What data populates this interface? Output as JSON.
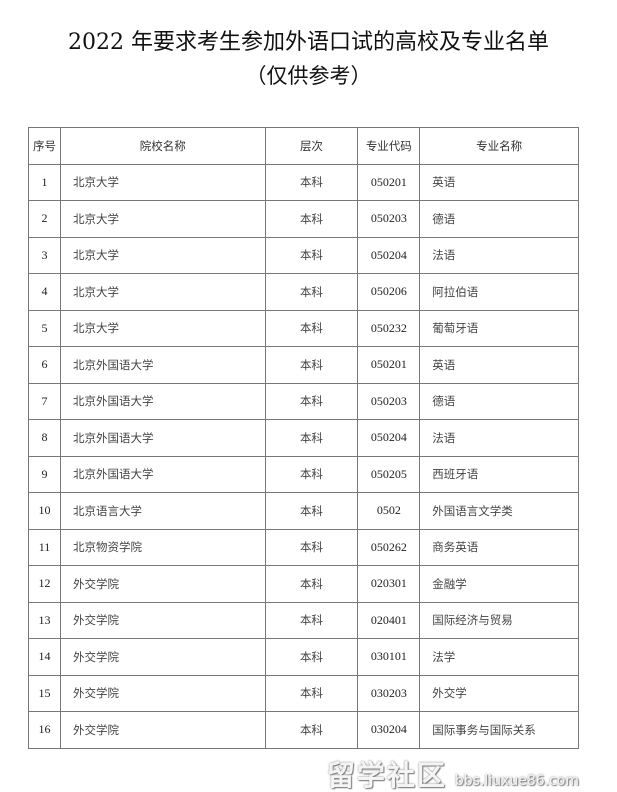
{
  "document": {
    "title": "2022 年要求考生参加外语口试的高校及专业名单",
    "subtitle": "（仅供参考）"
  },
  "table": {
    "headers": [
      "序号",
      "院校名称",
      "层次",
      "专业代码",
      "专业名称"
    ],
    "rows": [
      [
        "1",
        "北京大学",
        "本科",
        "050201",
        "英语"
      ],
      [
        "2",
        "北京大学",
        "本科",
        "050203",
        "德语"
      ],
      [
        "3",
        "北京大学",
        "本科",
        "050204",
        "法语"
      ],
      [
        "4",
        "北京大学",
        "本科",
        "050206",
        "阿拉伯语"
      ],
      [
        "5",
        "北京大学",
        "本科",
        "050232",
        "葡萄牙语"
      ],
      [
        "6",
        "北京外国语大学",
        "本科",
        "050201",
        "英语"
      ],
      [
        "7",
        "北京外国语大学",
        "本科",
        "050203",
        "德语"
      ],
      [
        "8",
        "北京外国语大学",
        "本科",
        "050204",
        "法语"
      ],
      [
        "9",
        "北京外国语大学",
        "本科",
        "050205",
        "西班牙语"
      ],
      [
        "10",
        "北京语言大学",
        "本科",
        "0502",
        "外国语言文学类"
      ],
      [
        "11",
        "北京物资学院",
        "本科",
        "050262",
        "商务英语"
      ],
      [
        "12",
        "外交学院",
        "本科",
        "020301",
        "金融学"
      ],
      [
        "13",
        "外交学院",
        "本科",
        "020401",
        "国际经济与贸易"
      ],
      [
        "14",
        "外交学院",
        "本科",
        "030101",
        "法学"
      ],
      [
        "15",
        "外交学院",
        "本科",
        "030203",
        "外交学"
      ],
      [
        "16",
        "外交学院",
        "本科",
        "030204",
        "国际事务与国际关系"
      ]
    ]
  },
  "watermark": {
    "logo_text": "留学社区",
    "url": "bbs.liuxue86.com"
  }
}
